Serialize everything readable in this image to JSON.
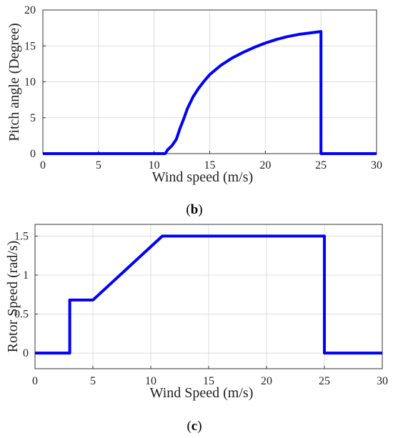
{
  "captions": [
    {
      "open": "(",
      "letter": "b",
      "close": ")"
    },
    {
      "open": "(",
      "letter": "c",
      "close": ")"
    }
  ],
  "chart_data": [
    {
      "type": "line",
      "title": "",
      "xlabel": "Wind speed (m/s)",
      "ylabel": "Pitch angle (Degree)",
      "xlim": [
        0,
        30
      ],
      "ylim": [
        0,
        20
      ],
      "xticks": [
        0,
        5,
        10,
        15,
        20,
        25,
        30
      ],
      "yticks": [
        0,
        5,
        10,
        15,
        20
      ],
      "xtick_labels": [
        "0",
        "5",
        "10",
        "15",
        "20",
        "25",
        "30"
      ],
      "ytick_labels": [
        "0",
        "5",
        "10",
        "15",
        "20"
      ],
      "grid": true,
      "color": "#0000ff",
      "series": [
        {
          "x": [
            0,
            11,
            11.2,
            11.6,
            12,
            12.3,
            12.7,
            13,
            13.5,
            14,
            14.5,
            15,
            16,
            17,
            18,
            19,
            20,
            21,
            22,
            23,
            24,
            25,
            25,
            30
          ],
          "values": [
            0,
            0,
            0.5,
            1.1,
            2.0,
            3.4,
            5.0,
            6.3,
            7.9,
            9.1,
            10.1,
            11.0,
            12.3,
            13.3,
            14.1,
            14.8,
            15.4,
            15.9,
            16.3,
            16.6,
            16.8,
            17.0,
            0,
            0
          ]
        }
      ]
    },
    {
      "type": "line",
      "title": "",
      "xlabel": "Wind Speed (m/s)",
      "ylabel": "Rotor Speed (rad/s)",
      "xlim": [
        0,
        30
      ],
      "ylim": [
        -0.2,
        1.65
      ],
      "xticks": [
        0,
        5,
        10,
        15,
        20,
        25,
        30
      ],
      "yticks": [
        0,
        0.5,
        1,
        1.5
      ],
      "xtick_labels": [
        "0",
        "5",
        "10",
        "15",
        "20",
        "25",
        "30"
      ],
      "ytick_labels": [
        "0",
        "0.5",
        "1",
        "1.5"
      ],
      "grid": true,
      "color": "#0000ff",
      "series": [
        {
          "x": [
            0,
            3,
            3,
            5,
            11,
            25,
            25,
            30
          ],
          "values": [
            0,
            0,
            0.68,
            0.68,
            1.5,
            1.5,
            0,
            0
          ]
        }
      ]
    }
  ]
}
